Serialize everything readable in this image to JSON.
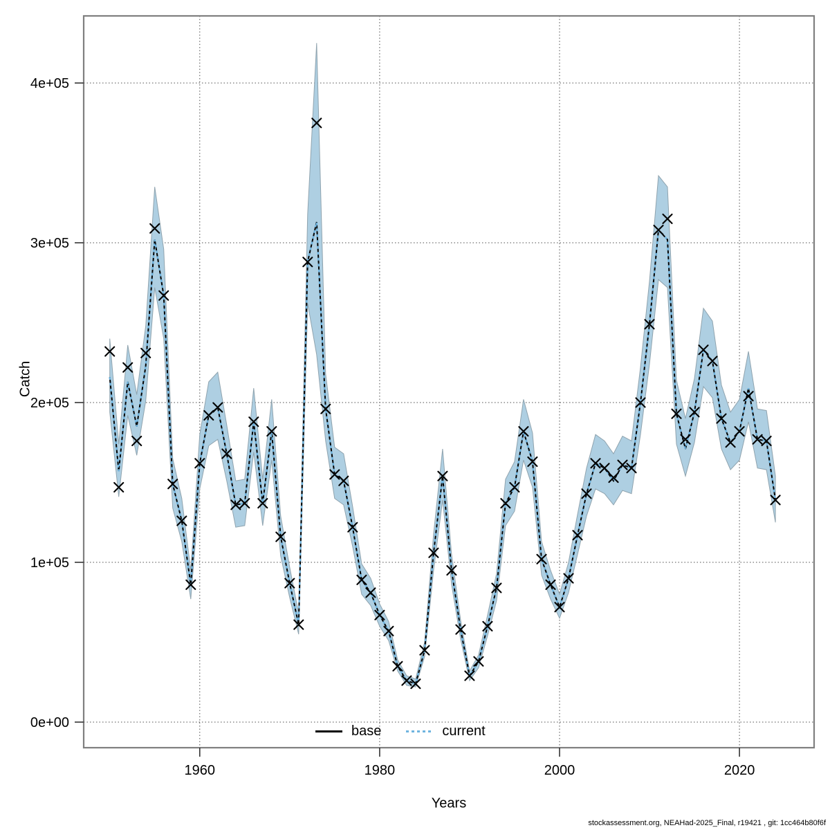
{
  "footer": {
    "text": "stockassessment.org, NEAHad-2025_Final, r19421 , git: 1cc464b80f6f"
  },
  "chart_data": {
    "type": "line",
    "title": "",
    "xlabel": "Years",
    "ylabel": "Catch",
    "grid": true,
    "legend_position": "bottom-center-inside",
    "legend": [
      {
        "label": "base",
        "line": "solid",
        "color": "#000000"
      },
      {
        "label": "current",
        "line": "dotted",
        "color": "#6FB4DF"
      }
    ],
    "xlim": [
      1947.1,
      2028.3
    ],
    "ylim": [
      -16000,
      442000
    ],
    "x_ticks": [
      1960,
      1980,
      2000,
      2020
    ],
    "x_tick_labels": [
      "1960",
      "1980",
      "2000",
      "2020"
    ],
    "y_ticks": [
      0,
      100000,
      200000,
      300000,
      400000
    ],
    "y_tick_labels": [
      "0e+00",
      "1e+05",
      "2e+05",
      "3e+05",
      "4e+05"
    ],
    "band_color": "#AECFE2",
    "band_edge_color": "#8FA3AE",
    "marker": "x",
    "marker_color": "#000000",
    "years": [
      1950,
      1951,
      1952,
      1953,
      1954,
      1955,
      1956,
      1957,
      1958,
      1959,
      1960,
      1961,
      1962,
      1963,
      1964,
      1965,
      1966,
      1967,
      1968,
      1969,
      1970,
      1971,
      1972,
      1973,
      1974,
      1975,
      1976,
      1977,
      1978,
      1979,
      1980,
      1981,
      1982,
      1983,
      1984,
      1985,
      1986,
      1987,
      1988,
      1989,
      1990,
      1991,
      1992,
      1993,
      1994,
      1995,
      1996,
      1997,
      1998,
      1999,
      2000,
      2001,
      2002,
      2003,
      2004,
      2005,
      2006,
      2007,
      2008,
      2009,
      2010,
      2011,
      2012,
      2013,
      2014,
      2015,
      2016,
      2017,
      2018,
      2019,
      2020,
      2021,
      2022,
      2023,
      2024
    ],
    "observed_catch": [
      232000,
      147000,
      222000,
      176000,
      231000,
      309000,
      267000,
      149000,
      126000,
      86000,
      162000,
      192000,
      197000,
      168000,
      136000,
      137000,
      188000,
      137000,
      182000,
      116000,
      87000,
      61000,
      288000,
      375000,
      196000,
      155000,
      151000,
      122000,
      89000,
      81000,
      67000,
      57000,
      35000,
      26000,
      24000,
      45000,
      106000,
      154000,
      95000,
      58000,
      29000,
      38000,
      60000,
      84000,
      137000,
      147000,
      182000,
      163000,
      102000,
      86000,
      72000,
      90000,
      117000,
      143000,
      162000,
      159000,
      153000,
      161000,
      159000,
      200000,
      249000,
      308000,
      315000,
      193000,
      177000,
      194000,
      233000,
      226000,
      190000,
      175000,
      182000,
      204000,
      177000,
      176000,
      139000
    ],
    "fitted_catch": [
      216000,
      157000,
      213000,
      185000,
      223000,
      302000,
      267000,
      149000,
      126000,
      86000,
      162000,
      192000,
      197000,
      168000,
      136000,
      137000,
      188000,
      137000,
      182000,
      116000,
      87000,
      61000,
      288000,
      313000,
      196000,
      155000,
      151000,
      122000,
      89000,
      81000,
      67000,
      57000,
      35000,
      26000,
      24000,
      45000,
      106000,
      154000,
      95000,
      58000,
      29000,
      38000,
      60000,
      84000,
      137000,
      147000,
      182000,
      163000,
      102000,
      86000,
      72000,
      90000,
      117000,
      143000,
      162000,
      159000,
      151000,
      161000,
      159000,
      200000,
      249000,
      308000,
      302000,
      193000,
      171000,
      194000,
      233000,
      226000,
      190000,
      175000,
      182000,
      209000,
      177000,
      176000,
      139000
    ],
    "ci_low": [
      194000,
      141000,
      192000,
      167000,
      201000,
      272000,
      240000,
      134000,
      113000,
      77000,
      146000,
      173000,
      177000,
      151000,
      122000,
      123000,
      169000,
      123000,
      164000,
      104000,
      78000,
      55000,
      262000,
      230000,
      176000,
      140000,
      136000,
      110000,
      80000,
      73000,
      60000,
      51000,
      32000,
      23000,
      22000,
      41000,
      95000,
      139000,
      86000,
      52000,
      26000,
      34000,
      54000,
      76000,
      123000,
      132000,
      164000,
      147000,
      92000,
      77000,
      65000,
      81000,
      105000,
      129000,
      146000,
      143000,
      136000,
      145000,
      143000,
      180000,
      224000,
      277000,
      272000,
      174000,
      154000,
      175000,
      210000,
      203000,
      171000,
      158000,
      164000,
      188000,
      159000,
      158000,
      125000
    ],
    "ci_high": [
      240000,
      174000,
      236000,
      205000,
      248000,
      335000,
      296000,
      165000,
      140000,
      95000,
      180000,
      213000,
      219000,
      186000,
      151000,
      152000,
      209000,
      152000,
      202000,
      129000,
      97000,
      68000,
      318000,
      425000,
      218000,
      172000,
      168000,
      135000,
      99000,
      90000,
      74000,
      63000,
      39000,
      29000,
      27000,
      50000,
      118000,
      171000,
      105000,
      64000,
      32000,
      42000,
      67000,
      93000,
      152000,
      163000,
      202000,
      181000,
      113000,
      95000,
      80000,
      100000,
      130000,
      159000,
      180000,
      176000,
      168000,
      179000,
      176000,
      222000,
      276000,
      342000,
      335000,
      214000,
      190000,
      215000,
      259000,
      251000,
      211000,
      194000,
      202000,
      232000,
      196000,
      195000,
      154000
    ]
  }
}
